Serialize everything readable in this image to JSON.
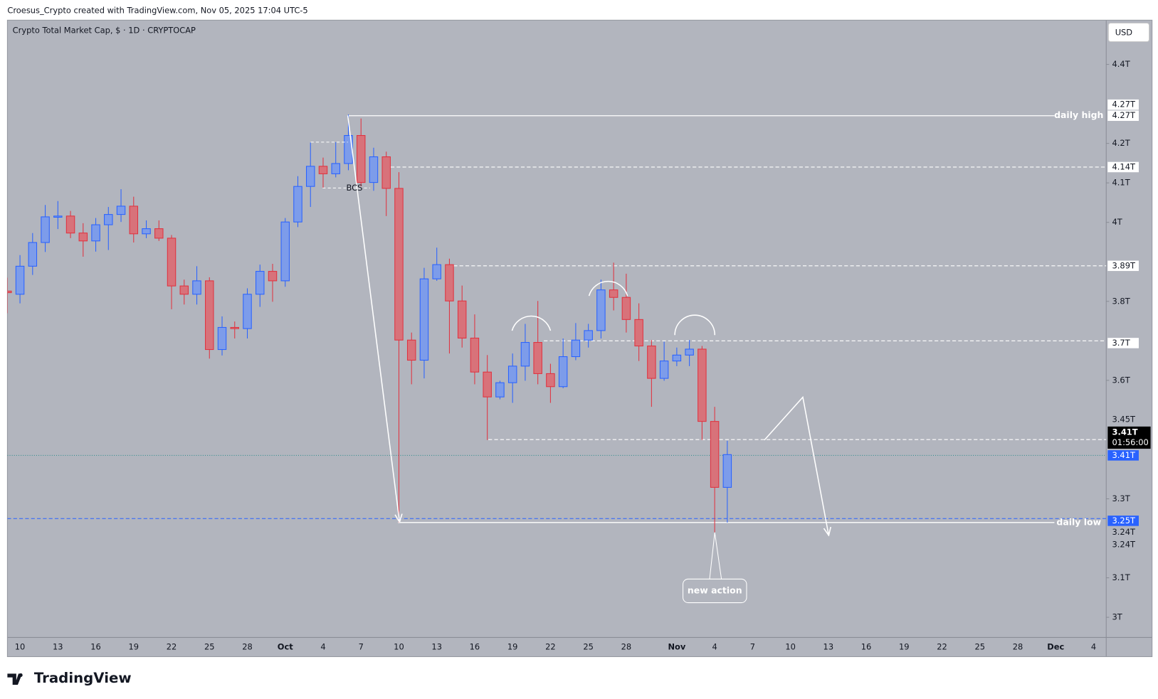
{
  "header": "Croesus_Crypto created with TradingView.com, Nov 05, 2025 17:04 UTC-5",
  "logo": "TradingView",
  "chart_data": {
    "type": "candlestick",
    "title": "Crypto Total Market Cap, $ · 1D · CRYPTOCAP",
    "currency": "USD",
    "categories": [
      null,
      "10",
      null,
      null,
      "13",
      null,
      null,
      "16",
      null,
      null,
      "19",
      null,
      null,
      "22",
      null,
      null,
      "25",
      null,
      null,
      "28",
      null,
      null,
      "Oct",
      null,
      null,
      "4",
      null,
      null,
      "7",
      null,
      null,
      "10",
      null,
      null,
      "13",
      null,
      null,
      "16",
      null,
      null,
      "19",
      null,
      null,
      "22",
      null,
      null,
      "25",
      null,
      null,
      "28",
      null,
      null,
      null,
      "Nov",
      null,
      null,
      "4",
      null,
      null,
      "7",
      null,
      null,
      "10",
      null,
      null,
      "13",
      null,
      null,
      "16",
      null,
      null,
      "19",
      null,
      null,
      "22",
      null,
      null,
      "25",
      null,
      null,
      "28",
      null,
      null,
      "Dec",
      null,
      null,
      "4"
    ],
    "open": [
      3.826,
      3.818,
      3.889,
      3.949,
      4.013,
      4.016,
      3.973,
      3.953,
      3.994,
      4.02,
      4.041,
      3.971,
      3.984,
      3.96,
      3.839,
      3.818,
      3.852,
      3.678,
      3.734,
      3.731,
      3.818,
      3.876,
      3.852,
      4.001,
      4.091,
      4.142,
      4.123,
      4.149,
      4.22,
      4.101,
      4.166,
      4.086,
      3.702,
      3.651,
      3.857,
      3.893,
      3.801,
      3.707,
      3.621,
      3.558,
      3.594,
      3.636,
      3.696,
      3.617,
      3.584,
      3.66,
      3.702,
      3.726,
      3.829,
      3.81,
      3.754,
      3.687,
      3.605,
      3.649,
      3.664,
      3.679,
      3.496,
      3.329,
      null,
      null,
      null,
      null,
      null,
      null,
      null,
      null,
      null,
      null,
      null,
      null,
      null,
      null,
      null,
      null,
      null,
      null,
      null,
      null,
      null,
      null,
      null,
      null,
      null,
      null,
      null,
      null,
      null
    ],
    "high": [
      3.86,
      3.917,
      3.973,
      4.044,
      4.054,
      4.029,
      3.998,
      4.011,
      4.039,
      4.084,
      4.065,
      4.005,
      4.005,
      3.968,
      3.855,
      3.889,
      3.861,
      3.762,
      3.749,
      3.833,
      3.893,
      3.895,
      4.011,
      4.117,
      4.202,
      4.164,
      4.203,
      4.273,
      4.263,
      4.189,
      4.179,
      4.127,
      3.721,
      3.885,
      3.936,
      3.908,
      3.84,
      3.767,
      3.664,
      3.599,
      3.668,
      3.743,
      3.801,
      3.642,
      3.706,
      3.745,
      3.743,
      3.855,
      3.898,
      3.87,
      3.795,
      3.702,
      3.698,
      3.683,
      3.702,
      3.687,
      3.533,
      3.447,
      null,
      null,
      null,
      null,
      null,
      null,
      null,
      null,
      null,
      null,
      null,
      null,
      null,
      null,
      null,
      null,
      null,
      null,
      null,
      null,
      null,
      null,
      null,
      null,
      null,
      null,
      null,
      null,
      null
    ],
    "low": [
      3.77,
      3.795,
      3.867,
      3.925,
      3.983,
      3.96,
      3.913,
      3.926,
      3.93,
      4.001,
      3.949,
      3.96,
      3.953,
      3.78,
      3.792,
      3.792,
      3.655,
      3.663,
      3.706,
      3.706,
      3.786,
      3.799,
      3.837,
      3.988,
      4.039,
      4.086,
      4.114,
      4.132,
      4.091,
      4.08,
      4.016,
      3.24,
      3.59,
      3.605,
      3.852,
      3.668,
      3.683,
      3.59,
      3.449,
      3.552,
      3.543,
      3.599,
      3.59,
      3.543,
      3.58,
      3.651,
      3.683,
      3.706,
      3.777,
      3.721,
      3.649,
      3.533,
      3.599,
      3.636,
      3.636,
      3.449,
      3.215,
      3.24,
      null,
      null,
      null,
      null,
      null,
      null,
      null,
      null,
      null,
      null,
      null,
      null,
      null,
      null,
      null,
      null,
      null,
      null,
      null,
      null,
      null,
      null,
      null,
      null,
      null,
      null,
      null,
      null,
      null
    ],
    "close": [
      3.822,
      3.889,
      3.949,
      4.014,
      4.016,
      3.973,
      3.953,
      3.994,
      4.02,
      4.041,
      3.971,
      3.984,
      3.96,
      3.839,
      3.818,
      3.852,
      3.678,
      3.734,
      3.731,
      3.818,
      3.876,
      3.852,
      4.001,
      4.091,
      4.142,
      4.123,
      4.149,
      4.22,
      4.101,
      4.166,
      4.086,
      3.702,
      3.651,
      3.857,
      3.893,
      3.801,
      3.707,
      3.621,
      3.558,
      3.594,
      3.636,
      3.696,
      3.617,
      3.584,
      3.66,
      3.702,
      3.726,
      3.829,
      3.81,
      3.754,
      3.687,
      3.605,
      3.649,
      3.664,
      3.679,
      3.496,
      3.329,
      3.412,
      null,
      null,
      null,
      null,
      null,
      null,
      null,
      null,
      null,
      null,
      null,
      null,
      null,
      null,
      null,
      null,
      null,
      null,
      null,
      null,
      null,
      null,
      null,
      null,
      null,
      null,
      null,
      null,
      null
    ],
    "up_color": "#2962ff",
    "down_color": "#e0323f",
    "ylim": [
      2.949,
      4.512
    ],
    "yticks": [
      {
        "value": 4.4,
        "label": "4.4T"
      },
      {
        "value": 4.2,
        "label": "4.2T"
      },
      {
        "value": 4.1,
        "label": "4.1T"
      },
      {
        "value": 4,
        "label": "4T"
      },
      {
        "value": 3.8,
        "label": "3.8T"
      },
      {
        "value": 3.6,
        "label": "3.6T"
      },
      {
        "value": 3.3,
        "label": "3.3T"
      },
      {
        "value": 3.1,
        "label": "3.1T"
      },
      {
        "value": 3,
        "label": "3T"
      }
    ],
    "price_labels": [
      {
        "value": 4.27,
        "label": "4.27T"
      },
      {
        "value": 4.27,
        "label": "4.27T"
      },
      {
        "value": 4.14,
        "label": "4.14T"
      },
      {
        "value": 3.89,
        "label": "3.89T"
      },
      {
        "value": 3.7,
        "label": "3.7T"
      },
      {
        "value": 3.45,
        "label": "3.45T"
      },
      {
        "value": 3.41,
        "label": "3.41T"
      },
      {
        "value": 3.41,
        "label": "3.41T"
      },
      {
        "value": 3.25,
        "label": "3.25T"
      },
      {
        "value": 3.24,
        "label": "3.24T"
      },
      {
        "value": 3.24,
        "label": "3.24T"
      }
    ],
    "countdown": "01:56:00",
    "levels": [
      {
        "value": 4.27,
        "label": "daily high"
      },
      {
        "value": 4.14
      },
      {
        "value": 3.89
      },
      {
        "value": 3.7
      },
      {
        "value": 3.45
      },
      {
        "value": 3.24,
        "label": "daily low"
      },
      {
        "value": 3.25
      },
      {
        "value": 3.41
      }
    ],
    "annotations": [
      "BCS",
      "new action"
    ]
  }
}
